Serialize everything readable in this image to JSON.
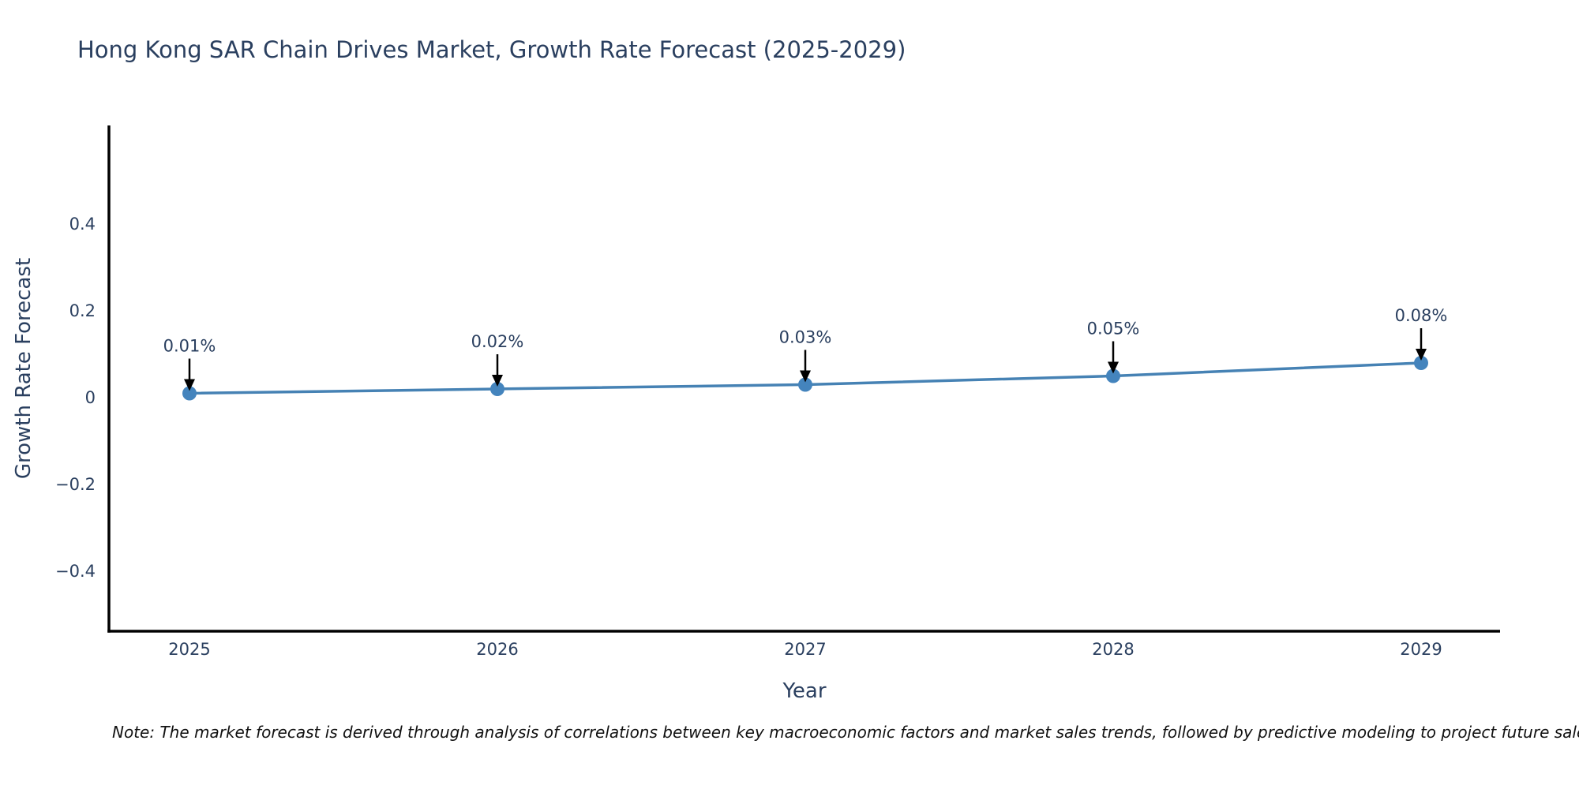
{
  "header": {
    "title": "Hong Kong SAR Chain Drives Market, Growth Rate Forecast (2025-2029)"
  },
  "footer": {
    "note": "Note: The market forecast is derived through analysis of correlations between key macroeconomic factors and market sales trends, followed by predictive modeling to project future sales"
  },
  "chart_data": {
    "type": "line",
    "title": "Hong Kong SAR Chain Drives Market, Growth Rate Forecast (2025-2029)",
    "categories": [
      "2025",
      "2026",
      "2027",
      "2028",
      "2029"
    ],
    "values": [
      0.01,
      0.02,
      0.03,
      0.05,
      0.08
    ],
    "points": [
      {
        "x": "2025",
        "y": 0.01,
        "label": "0.01%"
      },
      {
        "x": "2026",
        "y": 0.02,
        "label": "0.02%"
      },
      {
        "x": "2027",
        "y": 0.03,
        "label": "0.03%"
      },
      {
        "x": "2028",
        "y": 0.05,
        "label": "0.05%"
      },
      {
        "x": "2029",
        "y": 0.08,
        "label": "0.08%"
      }
    ],
    "xlabel": "Year",
    "ylabel": "Growth Rate Forecast",
    "yticks": [
      {
        "value": 0.4,
        "label": "0.4"
      },
      {
        "value": 0.2,
        "label": "0.2"
      },
      {
        "value": 0,
        "label": "0"
      },
      {
        "value": -0.2,
        "label": "−0.2"
      },
      {
        "value": -0.4,
        "label": "−0.4"
      }
    ],
    "ylim": [
      -0.54,
      0.63
    ],
    "grid": false,
    "legend": "none",
    "annotation_style": "down-arrow-to-point",
    "colors": {
      "line": "#4682b4",
      "marker": "#4484bd",
      "arrow": "#000000",
      "axis": "#000000",
      "text": "#2a3f5f"
    }
  }
}
